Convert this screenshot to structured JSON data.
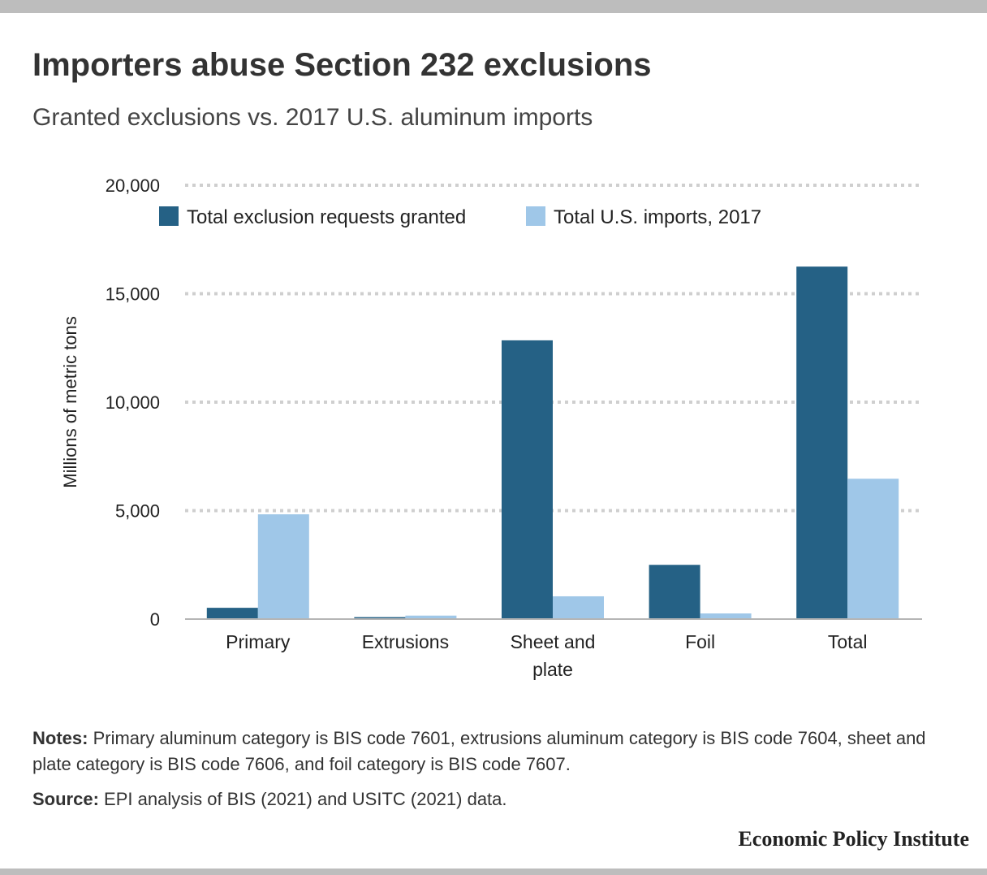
{
  "header": {
    "title": "Importers abuse Section 232 exclusions",
    "subtitle": "Granted exclusions vs. 2017 U.S. aluminum imports"
  },
  "chart_data": {
    "type": "bar",
    "categories": [
      [
        "Primary"
      ],
      [
        "Extrusions"
      ],
      [
        "Sheet and",
        "plate"
      ],
      [
        "Foil"
      ],
      [
        "Total"
      ]
    ],
    "series": [
      {
        "name": "Total exclusion requests granted",
        "color": "#256185",
        "values": [
          520,
          90,
          12850,
          2500,
          16250
        ]
      },
      {
        "name": "Total U.S. imports, 2017",
        "color": "#9fc7e8",
        "values": [
          4830,
          160,
          1050,
          260,
          6470
        ]
      }
    ],
    "ylabel": "Millions of metric tons",
    "ylim": [
      0,
      20000
    ],
    "yticks": [
      0,
      5000,
      10000,
      15000,
      20000
    ],
    "ytick_labels": [
      "0",
      "5,000",
      "10,000",
      "15,000",
      "20,000"
    ],
    "grid": true,
    "legend_position": "top-left"
  },
  "footer": {
    "notes_label": "Notes:",
    "notes_text": "Primary aluminum category is BIS code 7601, extrusions aluminum category is BIS code 7604, sheet and plate category is BIS code 7606, and foil category is BIS code 7607.",
    "source_label": "Source:",
    "source_text": "EPI analysis of BIS (2021) and USITC (2021) data.",
    "brand": "Economic Policy Institute"
  }
}
